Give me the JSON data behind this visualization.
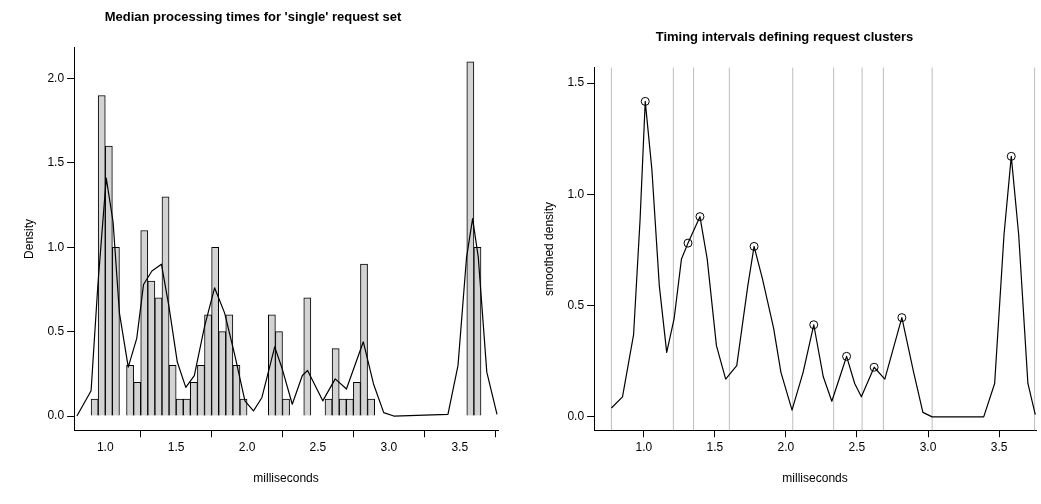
{
  "chart_data": [
    {
      "type": "histogram",
      "title": "Median processing times for 'single' request set",
      "xlabel": "milliseconds",
      "ylabel": "Density",
      "bins": [
        0.9,
        0.95,
        1.0,
        1.05,
        1.1,
        1.15,
        1.2,
        1.25,
        1.3,
        1.35,
        1.4,
        1.45,
        1.5,
        1.55,
        1.6,
        1.65,
        1.7,
        1.75,
        1.8,
        1.85,
        1.9,
        1.95,
        2.0,
        2.05,
        2.1,
        2.15,
        2.2,
        2.25,
        2.3,
        2.35,
        2.4,
        2.45,
        2.5,
        2.55,
        2.6,
        2.65,
        2.7,
        2.75,
        2.8,
        2.85,
        2.9,
        2.95,
        3.0,
        3.05,
        3.1,
        3.15,
        3.2,
        3.25,
        3.3,
        3.35,
        3.4,
        3.45,
        3.5,
        3.55,
        3.6,
        3.65
      ],
      "values": [
        0.1,
        1.9,
        1.6,
        1.0,
        0,
        0.3,
        0.2,
        1.1,
        0.8,
        0.7,
        1.3,
        0.3,
        0.1,
        0.1,
        0.2,
        0.3,
        0.6,
        1.0,
        0.5,
        0.6,
        0.3,
        0.1,
        0,
        0,
        0,
        0.6,
        0.5,
        0.1,
        0,
        0,
        0.7,
        0,
        0,
        0.1,
        0.4,
        0.1,
        0.1,
        0.2,
        0.9,
        0.1,
        0,
        0,
        0,
        0,
        0,
        0,
        0,
        0,
        0,
        0,
        0,
        0,
        0,
        2.1,
        1.0
      ],
      "color": "#d3d3d3",
      "series": [
        {
          "type": "line",
          "color": "#000000",
          "x": [
            0.8,
            0.9,
            0.948,
            1.007,
            1.055,
            1.1,
            1.162,
            1.222,
            1.27,
            1.329,
            1.396,
            1.449,
            1.508,
            1.568,
            1.628,
            1.7,
            1.771,
            1.842,
            1.914,
            1.985,
            2.045,
            2.105,
            2.195,
            2.248,
            2.319,
            2.39,
            2.427,
            2.534,
            2.622,
            2.701,
            2.82,
            2.892,
            2.964,
            3.035,
            3.417,
            3.488,
            3.548,
            3.591,
            3.631,
            3.691,
            3.763
          ],
          "values": [
            0.0,
            0.15,
            0.78,
            1.41,
            1.15,
            0.61,
            0.29,
            0.46,
            0.78,
            0.86,
            0.9,
            0.65,
            0.32,
            0.17,
            0.24,
            0.53,
            0.76,
            0.61,
            0.36,
            0.09,
            0.03,
            0.11,
            0.41,
            0.28,
            0.07,
            0.24,
            0.27,
            0.09,
            0.22,
            0.16,
            0.44,
            0.19,
            0.02,
            0.0,
            0.01,
            0.3,
            0.94,
            1.17,
            0.94,
            0.26,
            0.01
          ]
        }
      ],
      "xlim": [
        0.78,
        3.77
      ],
      "xticks": [
        {
          "value": 1,
          "label": "1.0"
        },
        {
          "value": 1.5,
          "label": "1.5"
        },
        {
          "value": 2,
          "label": "2.0"
        },
        {
          "value": 2.5,
          "label": "2.5"
        },
        {
          "value": 3,
          "label": "3.0"
        },
        {
          "value": 3.5,
          "label": "3.5"
        }
      ],
      "ylim": [
        -0.084,
        2.184
      ],
      "yticks": [
        {
          "value": 0,
          "label": "0.0"
        },
        {
          "value": 0.5,
          "label": "0.5"
        },
        {
          "value": 1,
          "label": "1.0"
        },
        {
          "value": 1.5,
          "label": "1.5"
        },
        {
          "value": 2,
          "label": "2.0"
        }
      ],
      "grid": false,
      "legend": false
    },
    {
      "type": "line",
      "title": "Timing intervals defining request clusters",
      "xlabel": "milliseconds",
      "ylabel": "smoothed density",
      "series": [
        {
          "color": "#000000",
          "x": [
            0.772,
            0.85,
            0.928,
            0.974,
            1.01,
            1.057,
            1.109,
            1.161,
            1.213,
            1.265,
            1.311,
            1.395,
            1.446,
            1.511,
            1.576,
            1.654,
            1.732,
            1.776,
            1.835,
            1.913,
            1.965,
            2.043,
            2.121,
            2.196,
            2.263,
            2.323,
            2.38,
            2.427,
            2.484,
            2.531,
            2.621,
            2.696,
            2.816,
            2.899,
            2.964,
            3.029,
            3.392,
            3.469,
            3.535,
            3.586,
            3.638,
            3.703,
            3.755
          ],
          "values": [
            0.04,
            0.09,
            0.37,
            0.89,
            1.418,
            1.11,
            0.59,
            0.29,
            0.44,
            0.71,
            0.781,
            0.9,
            0.71,
            0.32,
            0.17,
            0.23,
            0.59,
            0.766,
            0.62,
            0.4,
            0.2,
            0.03,
            0.2,
            0.414,
            0.18,
            0.07,
            0.18,
            0.272,
            0.15,
            0.09,
            0.223,
            0.17,
            0.446,
            0.2,
            0.02,
            0.0,
            0.0,
            0.15,
            0.82,
            1.171,
            0.82,
            0.15,
            0.01
          ]
        },
        {
          "type": "scatter",
          "marker": "circle",
          "color": "#000000",
          "x": [
            1.01,
            1.311,
            1.395,
            1.776,
            2.196,
            2.427,
            2.621,
            2.816,
            3.586
          ],
          "values": [
            1.418,
            0.781,
            0.9,
            0.766,
            0.414,
            0.272,
            0.223,
            0.446,
            1.171
          ]
        }
      ],
      "ref_lines": [
        {
          "axis": "x",
          "value": 0.772,
          "color": "#bebebe"
        },
        {
          "axis": "x",
          "value": 1.208,
          "color": "#bebebe"
        },
        {
          "axis": "x",
          "value": 1.35,
          "color": "#bebebe"
        },
        {
          "axis": "x",
          "value": 1.602,
          "color": "#bebebe"
        },
        {
          "axis": "x",
          "value": 2.048,
          "color": "#bebebe"
        },
        {
          "axis": "x",
          "value": 2.336,
          "color": "#bebebe"
        },
        {
          "axis": "x",
          "value": 2.536,
          "color": "#bebebe"
        },
        {
          "axis": "x",
          "value": 2.686,
          "color": "#bebebe"
        },
        {
          "axis": "x",
          "value": 3.029,
          "color": "#bebebe"
        },
        {
          "axis": "x",
          "value": 3.75,
          "color": "#bebebe"
        }
      ],
      "xlim": [
        0.65,
        3.76
      ],
      "xticks": [
        {
          "value": 1,
          "label": "1.0"
        },
        {
          "value": 1.5,
          "label": "1.5"
        },
        {
          "value": 2,
          "label": "2.0"
        },
        {
          "value": 2.5,
          "label": "2.5"
        },
        {
          "value": 3,
          "label": "3.0"
        },
        {
          "value": 3.5,
          "label": "3.5"
        }
      ],
      "ylim": [
        -0.06,
        1.57
      ],
      "yticks": [
        {
          "value": 0,
          "label": "0.0"
        },
        {
          "value": 0.5,
          "label": "0.5"
        },
        {
          "value": 1,
          "label": "1.0"
        },
        {
          "value": 1.5,
          "label": "1.5"
        }
      ],
      "grid": false,
      "legend": false
    }
  ]
}
